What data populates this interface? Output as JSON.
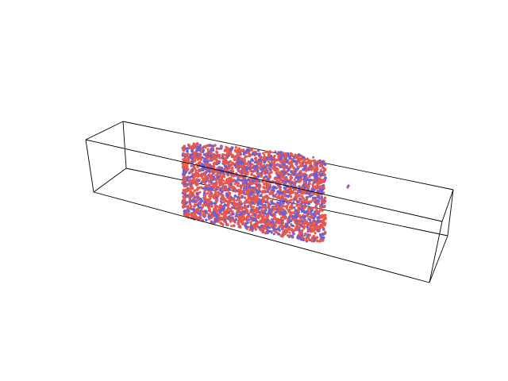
{
  "scene": {
    "background_color": "#ffffff",
    "box_edge_color": "#000000",
    "particle_colors": {
      "species_a": "#e8584a",
      "species_b": "#6b5fd6"
    },
    "species_b_fraction": 0.35
  }
}
